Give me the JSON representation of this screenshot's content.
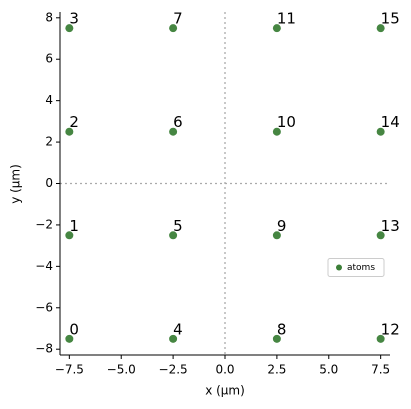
{
  "chart_data": {
    "type": "scatter",
    "x_label": "x (µm)",
    "y_label": "y (µm)",
    "series": [
      {
        "name": "atoms",
        "color": "#3c7f38",
        "x": [
          -7.5,
          -7.5,
          -7.5,
          -7.5,
          -2.5,
          -2.5,
          -2.5,
          -2.5,
          2.5,
          2.5,
          2.5,
          2.5,
          7.5,
          7.5,
          7.5,
          7.5
        ],
        "values": [
          -7.5,
          -2.5,
          2.5,
          7.5,
          -7.5,
          -2.5,
          2.5,
          7.5,
          -7.5,
          -2.5,
          2.5,
          7.5,
          -7.5,
          -2.5,
          2.5,
          7.5
        ],
        "point_labels": [
          "0",
          "1",
          "2",
          "3",
          "4",
          "5",
          "6",
          "7",
          "8",
          "9",
          "10",
          "11",
          "12",
          "13",
          "14",
          "15"
        ]
      }
    ],
    "xlim": [
      -7.95,
      7.95
    ],
    "ylim": [
      -8.28,
      8.28
    ],
    "xticks": [
      {
        "value": -7.5,
        "label": "−7.5"
      },
      {
        "value": -5,
        "label": "−5.0"
      },
      {
        "value": -2.5,
        "label": "−2.5"
      },
      {
        "value": 0,
        "label": "0.0"
      },
      {
        "value": 2.5,
        "label": "2.5"
      },
      {
        "value": 5,
        "label": "5.0"
      },
      {
        "value": 7.5,
        "label": "7.5"
      }
    ],
    "yticks": [
      {
        "value": -8,
        "label": "−8"
      },
      {
        "value": -6,
        "label": "−6"
      },
      {
        "value": -4,
        "label": "−4"
      },
      {
        "value": -2,
        "label": "−2"
      },
      0,
      2,
      4,
      6,
      8
    ],
    "zero_lines": true,
    "legend_loc": "center right"
  }
}
